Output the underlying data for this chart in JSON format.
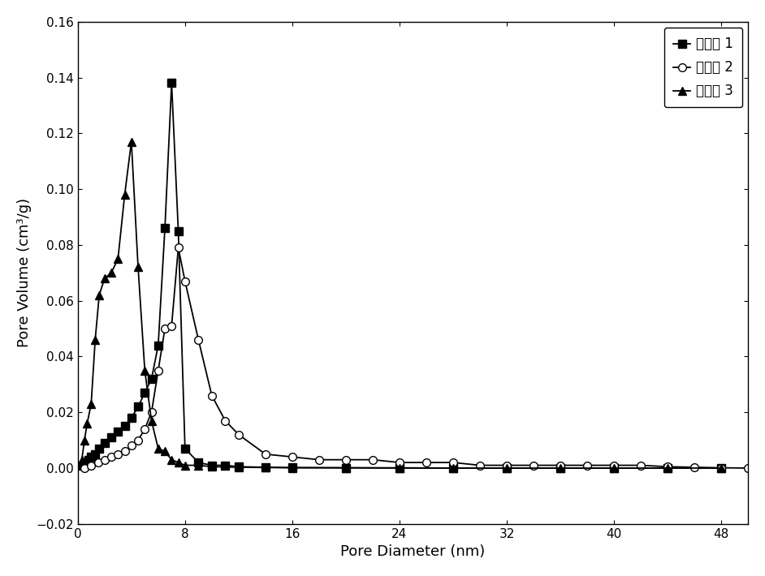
{
  "cat1_x": [
    0.4,
    0.6,
    0.8,
    1.0,
    1.3,
    1.6,
    2.0,
    2.5,
    3.0,
    3.5,
    4.0,
    4.5,
    5.0,
    5.5,
    6.0,
    6.5,
    7.0,
    7.5,
    8.0,
    9.0,
    10.0,
    11.0,
    12.0,
    14.0,
    16.0,
    20.0,
    24.0,
    28.0,
    32.0,
    36.0,
    40.0,
    44.0,
    48.0
  ],
  "cat1_y": [
    0.001,
    0.002,
    0.003,
    0.004,
    0.005,
    0.007,
    0.009,
    0.011,
    0.013,
    0.015,
    0.018,
    0.022,
    0.027,
    0.032,
    0.044,
    0.086,
    0.138,
    0.085,
    0.007,
    0.002,
    0.001,
    0.001,
    0.0005,
    0.0003,
    0.0002,
    0.0001,
    0.0001,
    0.0,
    0.0,
    0.0,
    0.0,
    0.0,
    0.0
  ],
  "cat2_x": [
    0.5,
    1.0,
    1.5,
    2.0,
    2.5,
    3.0,
    3.5,
    4.0,
    4.5,
    5.0,
    5.5,
    6.0,
    6.5,
    7.0,
    7.5,
    8.0,
    9.0,
    10.0,
    11.0,
    12.0,
    14.0,
    16.0,
    18.0,
    20.0,
    22.0,
    24.0,
    26.0,
    28.0,
    30.0,
    32.0,
    34.0,
    36.0,
    38.0,
    40.0,
    42.0,
    44.0,
    46.0,
    48.0,
    50.0
  ],
  "cat2_y": [
    0.0,
    0.001,
    0.002,
    0.003,
    0.004,
    0.005,
    0.006,
    0.008,
    0.01,
    0.014,
    0.02,
    0.035,
    0.05,
    0.051,
    0.079,
    0.067,
    0.046,
    0.026,
    0.017,
    0.012,
    0.005,
    0.004,
    0.003,
    0.003,
    0.003,
    0.002,
    0.002,
    0.002,
    0.001,
    0.001,
    0.001,
    0.001,
    0.001,
    0.001,
    0.001,
    0.0005,
    0.0003,
    0.0001,
    0.0
  ],
  "cat3_x": [
    0.3,
    0.5,
    0.7,
    1.0,
    1.3,
    1.6,
    2.0,
    2.5,
    3.0,
    3.5,
    4.0,
    4.5,
    5.0,
    5.5,
    6.0,
    6.5,
    7.0,
    7.5,
    8.0,
    9.0,
    10.0,
    12.0,
    14.0,
    16.0,
    20.0,
    24.0,
    28.0,
    32.0,
    36.0,
    40.0,
    44.0,
    48.0
  ],
  "cat3_y": [
    0.003,
    0.01,
    0.016,
    0.023,
    0.046,
    0.062,
    0.068,
    0.07,
    0.075,
    0.098,
    0.117,
    0.072,
    0.035,
    0.017,
    0.007,
    0.006,
    0.003,
    0.002,
    0.001,
    0.001,
    0.0005,
    0.0003,
    0.0002,
    0.0001,
    0.0001,
    0.0,
    0.0,
    0.0,
    0.0,
    0.0,
    0.0,
    0.0
  ],
  "xlabel": "Pore Diameter (nm)",
  "ylabel": "Pore Volume (cm³/g)",
  "xlim": [
    0,
    50
  ],
  "ylim": [
    -0.02,
    0.16
  ],
  "yticks": [
    -0.02,
    0.0,
    0.02,
    0.04,
    0.06,
    0.08,
    0.1,
    0.12,
    0.14,
    0.16
  ],
  "xticks": [
    0,
    8,
    16,
    24,
    32,
    40,
    48
  ],
  "legend1": "催化剂 1",
  "legend2": "催化剂 2",
  "legend3": "催化剂 3",
  "line_color": "#000000",
  "background_color": "#ffffff"
}
